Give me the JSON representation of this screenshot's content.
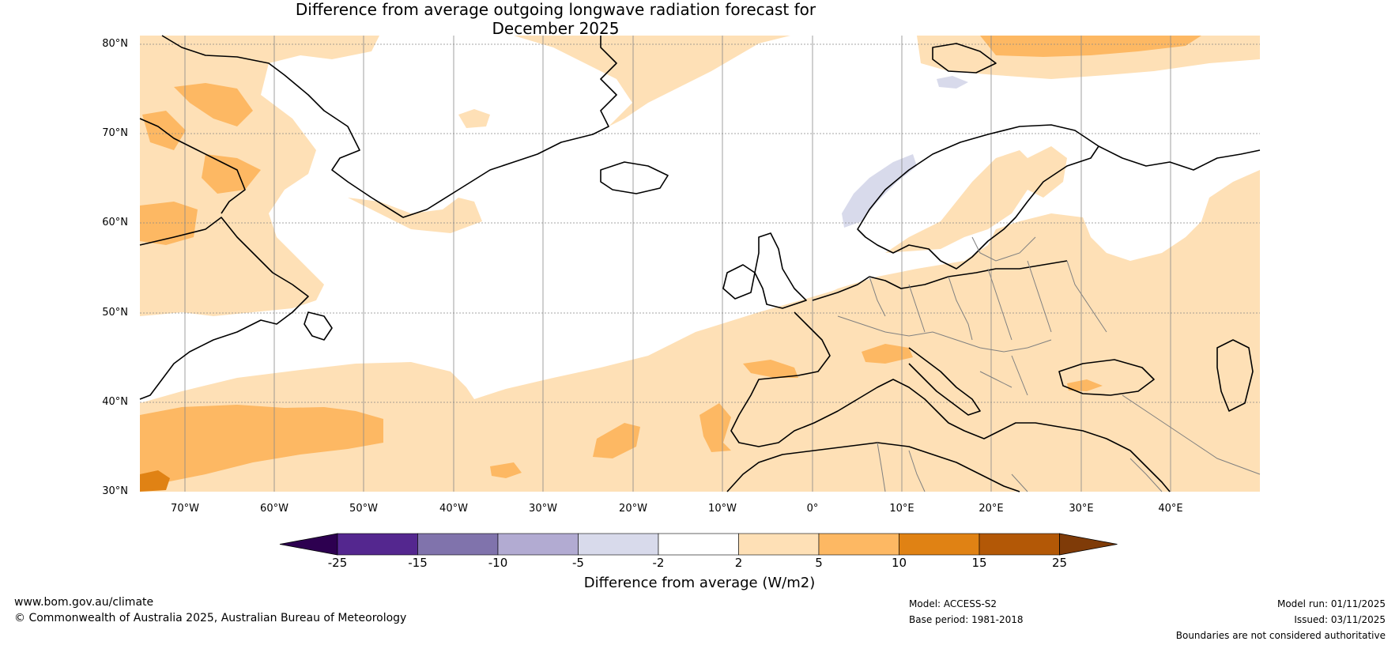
{
  "title": {
    "line1": "Difference from average outgoing longwave radiation forecast for",
    "line2": "December 2025"
  },
  "map": {
    "lat_labels": [
      "80°N",
      "70°N",
      "60°N",
      "50°N",
      "40°N",
      "30°N"
    ],
    "lon_labels": [
      "70°W",
      "60°W",
      "50°W",
      "40°W",
      "30°W",
      "20°W",
      "10°W",
      "0°",
      "10°E",
      "20°E",
      "30°E",
      "40°E"
    ],
    "extent": {
      "lon_min": -75,
      "lon_max": 50,
      "lat_min": 30,
      "lat_max": 81
    },
    "colors": {
      "land_line": "#000000",
      "border_line": "#808080",
      "grid": "#888888"
    }
  },
  "colorbar": {
    "label": "Difference from average (W/m2)",
    "ticks": [
      "-25",
      "-15",
      "-10",
      "-5",
      "-2",
      "2",
      "5",
      "10",
      "15",
      "25"
    ],
    "bins": [
      {
        "range": "< -25",
        "color": "#2d0050"
      },
      {
        "range": "-25 to -15",
        "color": "#54278f"
      },
      {
        "range": "-15 to -10",
        "color": "#8073ac"
      },
      {
        "range": "-10 to -5",
        "color": "#b2abd2"
      },
      {
        "range": "-5 to -2",
        "color": "#d8daeb"
      },
      {
        "range": "-2 to 2",
        "color": "#ffffff"
      },
      {
        "range": "2 to 5",
        "color": "#fee0b6"
      },
      {
        "range": "5 to 10",
        "color": "#fdb863"
      },
      {
        "range": "10 to 15",
        "color": "#e08214"
      },
      {
        "range": "15 to 25",
        "color": "#b35806"
      },
      {
        "range": "> 25",
        "color": "#7f3b08"
      }
    ]
  },
  "footer": {
    "website": "www.bom.gov.au/climate",
    "copyright": "© Commonwealth of Australia 2025, Australian Bureau of Meteorology",
    "model": "Model: ACCESS-S2",
    "base_period": "Base period: 1981-2018",
    "model_run": "Model run: 01/11/2025",
    "issued": "Issued: 03/11/2025",
    "disclaimer": "Boundaries are not considered authoritative"
  }
}
